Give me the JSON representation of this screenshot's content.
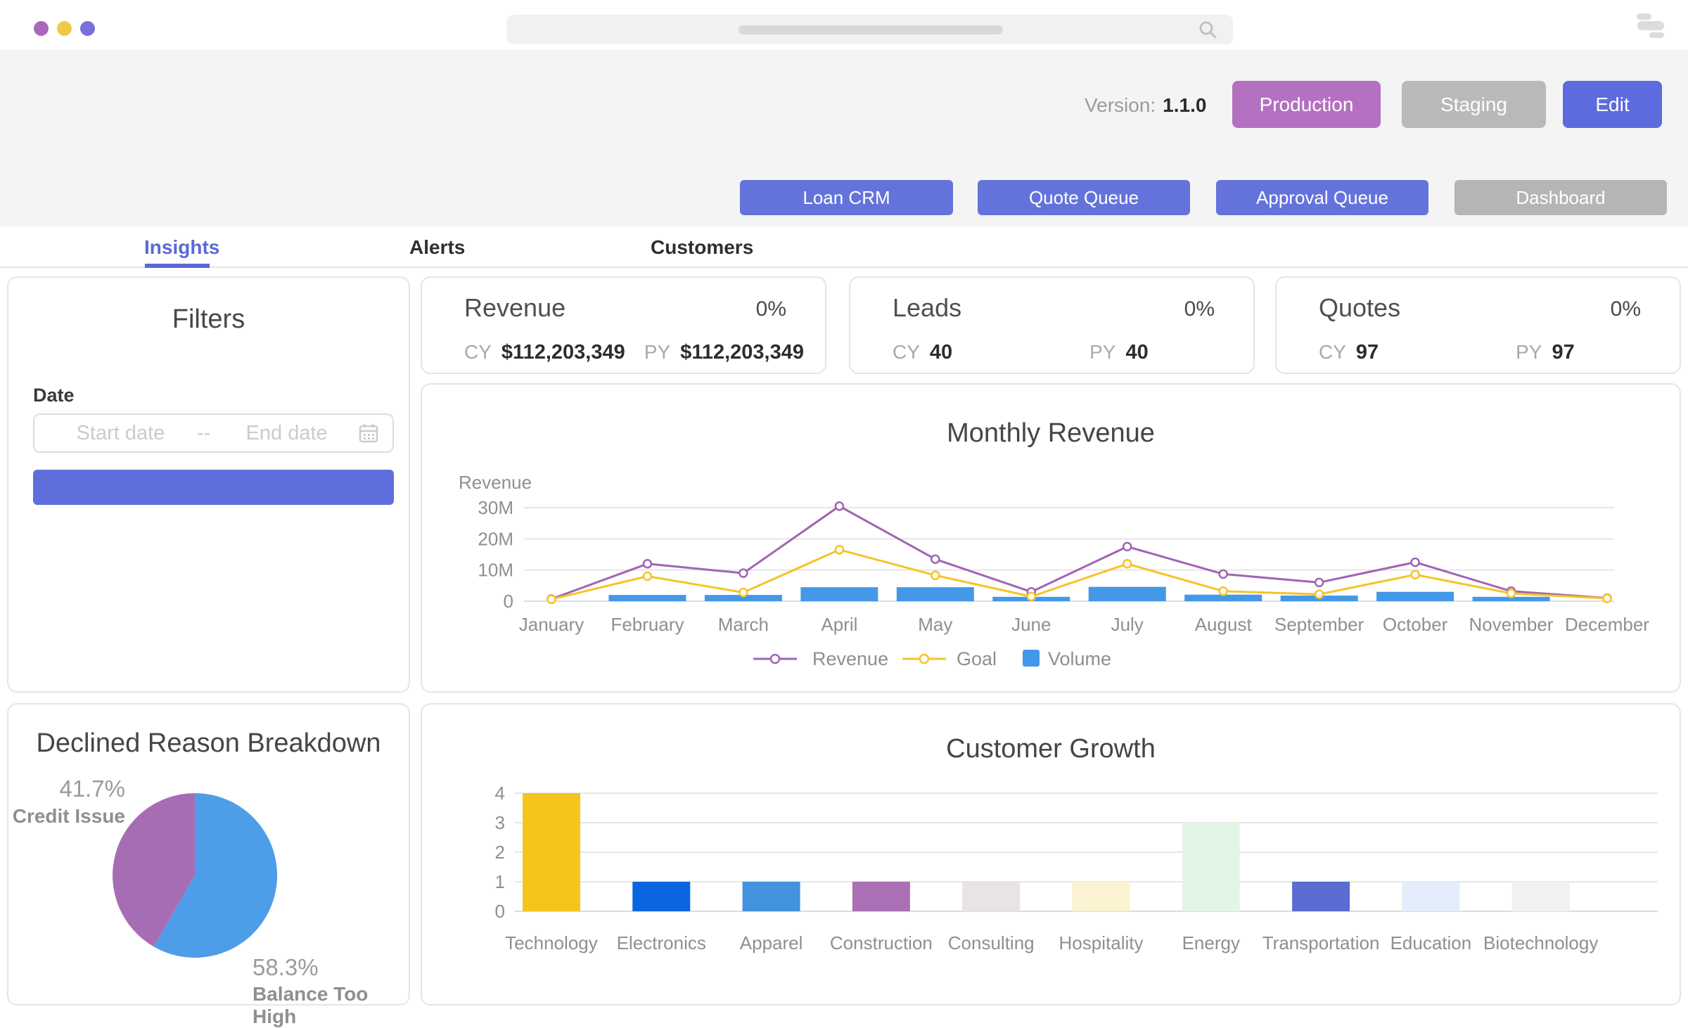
{
  "window": {
    "traffic_dots": [
      "#ab67b8",
      "#f0ca45",
      "#7a70d8"
    ]
  },
  "header": {
    "version_label": "Version:",
    "version_value": "1.1.0",
    "env_buttons": [
      {
        "label": "Production",
        "color": "#b470c1"
      },
      {
        "label": "Staging",
        "color": "#b9b9b9"
      },
      {
        "label": "Edit",
        "color": "#5c6bdd"
      }
    ]
  },
  "nav": {
    "buttons": [
      {
        "label": "Loan CRM",
        "color": "#6473dc"
      },
      {
        "label": "Quote Queue",
        "color": "#6473dc"
      },
      {
        "label": "Approval Queue",
        "color": "#6473dc"
      },
      {
        "label": "Dashboard",
        "color": "#b5b5b5"
      }
    ]
  },
  "tabs": [
    {
      "label": "Insights",
      "active": true
    },
    {
      "label": "Alerts",
      "active": false
    },
    {
      "label": "Customers",
      "active": false
    }
  ],
  "filters": {
    "title": "Filters",
    "date_label": "Date",
    "start_placeholder": "Start date",
    "separator": "--",
    "end_placeholder": "End date",
    "apply_button_color": "#5e6edb"
  },
  "kpis": [
    {
      "title": "Revenue",
      "percent": "0%",
      "cy_label": "CY",
      "cy_value": "$112,203,349",
      "py_label": "PY",
      "py_value": "$112,203,349"
    },
    {
      "title": "Leads",
      "percent": "0%",
      "cy_label": "CY",
      "cy_value": "40",
      "py_label": "PY",
      "py_value": "40"
    },
    {
      "title": "Quotes",
      "percent": "0%",
      "cy_label": "CY",
      "cy_value": "97",
      "py_label": "PY",
      "py_value": "97"
    }
  ],
  "chart_data": [
    {
      "type": "line",
      "title": "Monthly Revenue",
      "ylabel": "Revenue",
      "unit": "millions",
      "ylim": [
        0,
        30
      ],
      "grid": true,
      "legend_position": "bottom",
      "categories": [
        "January",
        "February",
        "March",
        "April",
        "May",
        "June",
        "July",
        "August",
        "September",
        "October",
        "November",
        "December"
      ],
      "yticks": [
        {
          "label": "0",
          "value": 0
        },
        {
          "label": "10M",
          "value": 10
        },
        {
          "label": "20M",
          "value": 20
        },
        {
          "label": "30M",
          "value": 30
        }
      ],
      "series": [
        {
          "name": "Revenue",
          "style": "line",
          "color": "#a065b2",
          "values": [
            0.7,
            12,
            9,
            30.5,
            13.5,
            3,
            17.5,
            8.7,
            6,
            12.5,
            3.2,
            1
          ]
        },
        {
          "name": "Goal",
          "style": "line",
          "color": "#f6c327",
          "values": [
            0.6,
            8,
            2.8,
            16.5,
            8.3,
            1.5,
            12,
            3.2,
            2.2,
            8.5,
            2.5,
            0.9
          ]
        },
        {
          "name": "Volume",
          "style": "bar",
          "color": "#4498e8",
          "values": [
            0,
            2,
            2,
            4.5,
            4.5,
            1.4,
            4.6,
            2.1,
            1.8,
            3,
            1.4,
            0
          ]
        }
      ]
    },
    {
      "type": "pie",
      "title": "Declined Reason Breakdown",
      "slices": [
        {
          "label": "Balance Too High",
          "percent": 58.3,
          "percent_label": "58.3%",
          "color": "#4d9de9"
        },
        {
          "label": "Credit Issue",
          "percent": 41.7,
          "percent_label": "41.7%",
          "color": "#a76db4"
        }
      ]
    },
    {
      "type": "bar",
      "title": "Customer Growth",
      "ylim": [
        0,
        4
      ],
      "grid": true,
      "categories": [
        "Technology",
        "Electronics",
        "Apparel",
        "Construction",
        "Consulting",
        "Hospitality",
        "Energy",
        "Transportation",
        "Education",
        "Biotechnology"
      ],
      "values": [
        4,
        1,
        1,
        1,
        1,
        1,
        3,
        1,
        1,
        1
      ],
      "colors": [
        "#f5c51c",
        "#0a66e0",
        "#4292dc",
        "#aa6fb5",
        "#e8e4e4",
        "#fbf3d1",
        "#e3f6e5",
        "#5c6cd3",
        "#e4edfb",
        "#f1f1ef"
      ],
      "yticks": [
        {
          "label": "0",
          "value": 0
        },
        {
          "label": "1",
          "value": 1
        },
        {
          "label": "2",
          "value": 2
        },
        {
          "label": "3",
          "value": 3
        },
        {
          "label": "4",
          "value": 4
        }
      ]
    }
  ]
}
